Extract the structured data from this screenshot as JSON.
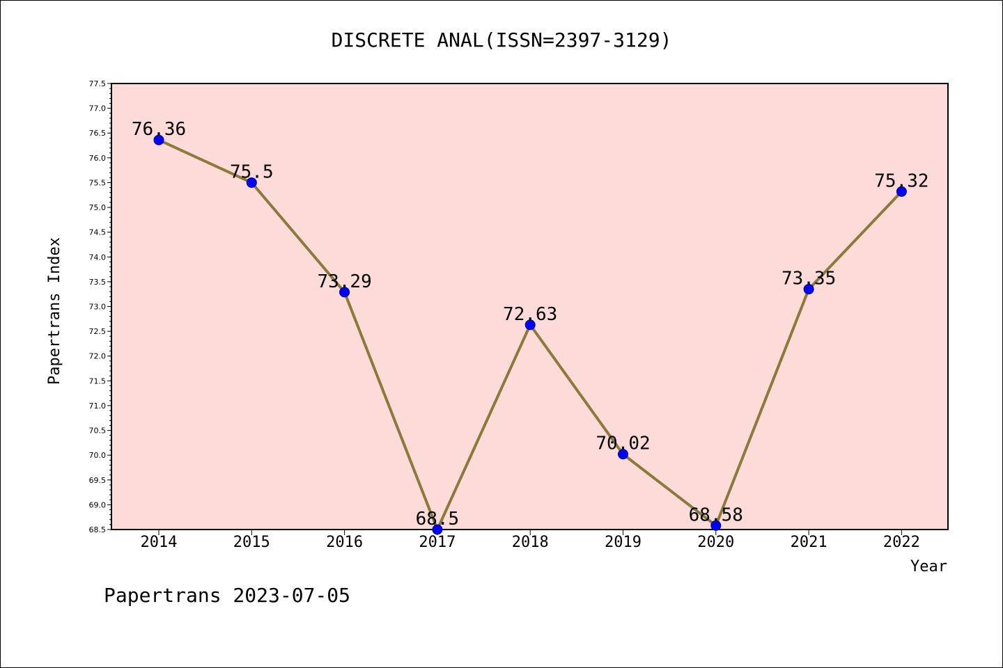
{
  "chart_data": {
    "type": "line",
    "title": "DISCRETE ANAL(ISSN=2397-3129)",
    "xlabel": "Year",
    "ylabel": "Papertrans Index",
    "categories": [
      "2014",
      "2015",
      "2016",
      "2017",
      "2018",
      "2019",
      "2020",
      "2021",
      "2022"
    ],
    "values": [
      76.36,
      75.5,
      73.29,
      68.5,
      72.63,
      70.02,
      68.58,
      73.35,
      75.32
    ],
    "data_labels": [
      "76.36",
      "75.5",
      "73.29",
      "68.5",
      "72.63",
      "70.02",
      "68.58",
      "73.35",
      "75.32"
    ],
    "ylim": [
      68.5,
      77.5
    ],
    "yticks": [
      "68.5",
      "69.0",
      "69.5",
      "70.0",
      "70.5",
      "71.0",
      "71.5",
      "72.0",
      "72.5",
      "73.0",
      "73.5",
      "74.0",
      "74.5",
      "75.0",
      "75.5",
      "76.0",
      "76.5",
      "77.0",
      "77.5"
    ],
    "grid": false,
    "colors": {
      "plot_background": "#fddbd8",
      "line": "#8b7a3a",
      "marker": "#0000ff",
      "marker_edge": "#00008b"
    }
  },
  "footer": "Papertrans 2023-07-05"
}
